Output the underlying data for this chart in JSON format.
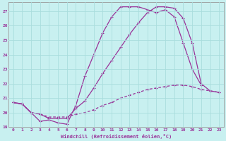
{
  "xlabel": "Windchill (Refroidissement éolien,°C)",
  "bg_color": "#c8f0f0",
  "line_color": "#993399",
  "grid_color": "#aadddd",
  "xlim": [
    -0.5,
    23.5
  ],
  "ylim": [
    19.0,
    27.6
  ],
  "xticks": [
    0,
    1,
    2,
    3,
    4,
    5,
    6,
    7,
    8,
    9,
    10,
    11,
    12,
    13,
    14,
    15,
    16,
    17,
    18,
    19,
    20,
    21,
    22,
    23
  ],
  "yticks": [
    19,
    20,
    21,
    22,
    23,
    24,
    25,
    26,
    27
  ],
  "line1_x": [
    0,
    1,
    2,
    3,
    4,
    5,
    6,
    7,
    8,
    9,
    10,
    11,
    12,
    13,
    14,
    15,
    16,
    17,
    18,
    19,
    20,
    21
  ],
  "line1_y": [
    20.7,
    20.6,
    20.0,
    19.4,
    19.5,
    19.3,
    19.2,
    20.5,
    22.5,
    24.0,
    25.5,
    26.6,
    27.3,
    27.3,
    27.3,
    27.1,
    26.9,
    27.1,
    26.6,
    24.8,
    23.0,
    21.9
  ],
  "line2_x": [
    0,
    1,
    2,
    3,
    4,
    5,
    6,
    7,
    8,
    9,
    10,
    11,
    12,
    13,
    14,
    15,
    16,
    17,
    18,
    19,
    20,
    21,
    22,
    23
  ],
  "line2_y": [
    20.7,
    20.6,
    20.0,
    19.9,
    19.6,
    19.6,
    19.6,
    20.3,
    20.8,
    21.7,
    22.7,
    23.6,
    24.5,
    25.4,
    26.2,
    26.9,
    27.3,
    27.3,
    27.2,
    26.5,
    24.8,
    22.0,
    21.5,
    21.4
  ],
  "line3_x": [
    0,
    1,
    2,
    3,
    4,
    5,
    6,
    7,
    8,
    9,
    10,
    11,
    12,
    13,
    14,
    15,
    16,
    17,
    18,
    19,
    20,
    21,
    22,
    23
  ],
  "line3_y": [
    20.7,
    20.6,
    20.0,
    19.9,
    19.7,
    19.7,
    19.7,
    19.9,
    20.0,
    20.2,
    20.5,
    20.7,
    21.0,
    21.2,
    21.4,
    21.6,
    21.7,
    21.8,
    21.9,
    21.9,
    21.8,
    21.6,
    21.5,
    21.4
  ]
}
